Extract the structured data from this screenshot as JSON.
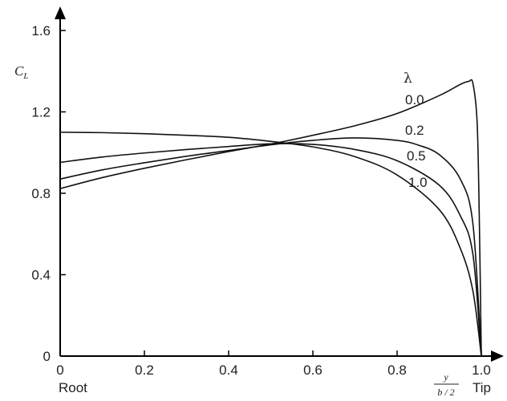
{
  "chart_data": {
    "type": "line",
    "title": "",
    "ylabel": {
      "main": "C",
      "sub": "L"
    },
    "xlabel": {
      "numerator": "y",
      "denominator": "b / 2"
    },
    "x_endpoint_labels": {
      "left": "Root",
      "right": "Tip"
    },
    "legend_title": "λ",
    "xlim": [
      0,
      1.0
    ],
    "ylim": [
      0,
      1.6
    ],
    "x_ticks": [
      {
        "value": 0,
        "label": "0"
      },
      {
        "value": 0.2,
        "label": "0.2"
      },
      {
        "value": 0.4,
        "label": "0.4"
      },
      {
        "value": 0.6,
        "label": "0.6"
      },
      {
        "value": 0.8,
        "label": "0.8"
      },
      {
        "value": 1.0,
        "label": "1.0"
      }
    ],
    "y_ticks": [
      {
        "value": 0,
        "label": "0"
      },
      {
        "value": 0.4,
        "label": "0.4"
      },
      {
        "value": 0.8,
        "label": "0.8"
      },
      {
        "value": 1.2,
        "label": "1.2"
      },
      {
        "value": 1.6,
        "label": "1.6"
      }
    ],
    "grid": false,
    "series": [
      {
        "name": "0.0",
        "points": [
          [
            0,
            0.823
          ],
          [
            0.1,
            0.877
          ],
          [
            0.2,
            0.923
          ],
          [
            0.3,
            0.965
          ],
          [
            0.4,
            1.005
          ],
          [
            0.5,
            1.042
          ],
          [
            0.6,
            1.085
          ],
          [
            0.7,
            1.132
          ],
          [
            0.8,
            1.192
          ],
          [
            0.9,
            1.28
          ],
          [
            0.95,
            1.335
          ],
          [
            0.97,
            1.35
          ],
          [
            0.98,
            1.34
          ],
          [
            0.99,
            1.15
          ],
          [
            0.995,
            0.7
          ],
          [
            1.0,
            0.0
          ]
        ]
      },
      {
        "name": "0.2",
        "points": [
          [
            0,
            0.87
          ],
          [
            0.1,
            0.915
          ],
          [
            0.2,
            0.95
          ],
          [
            0.3,
            0.982
          ],
          [
            0.4,
            1.01
          ],
          [
            0.5,
            1.038
          ],
          [
            0.6,
            1.06
          ],
          [
            0.7,
            1.072
          ],
          [
            0.8,
            1.06
          ],
          [
            0.85,
            1.037
          ],
          [
            0.9,
            0.99
          ],
          [
            0.95,
            0.87
          ],
          [
            0.98,
            0.65
          ],
          [
            1.0,
            0.0
          ]
        ]
      },
      {
        "name": "0.5",
        "points": [
          [
            0,
            0.952
          ],
          [
            0.1,
            0.978
          ],
          [
            0.2,
            0.998
          ],
          [
            0.3,
            1.015
          ],
          [
            0.4,
            1.03
          ],
          [
            0.5,
            1.043
          ],
          [
            0.6,
            1.04
          ],
          [
            0.7,
            1.015
          ],
          [
            0.8,
            0.96
          ],
          [
            0.9,
            0.84
          ],
          [
            0.95,
            0.69
          ],
          [
            0.98,
            0.5
          ],
          [
            1.0,
            0.0
          ]
        ]
      },
      {
        "name": "1.0",
        "points": [
          [
            0,
            1.1
          ],
          [
            0.1,
            1.098
          ],
          [
            0.2,
            1.093
          ],
          [
            0.3,
            1.085
          ],
          [
            0.4,
            1.075
          ],
          [
            0.5,
            1.055
          ],
          [
            0.6,
            1.028
          ],
          [
            0.7,
            0.98
          ],
          [
            0.8,
            0.89
          ],
          [
            0.9,
            0.72
          ],
          [
            0.95,
            0.53
          ],
          [
            0.98,
            0.32
          ],
          [
            1.0,
            0.0
          ]
        ]
      }
    ]
  }
}
